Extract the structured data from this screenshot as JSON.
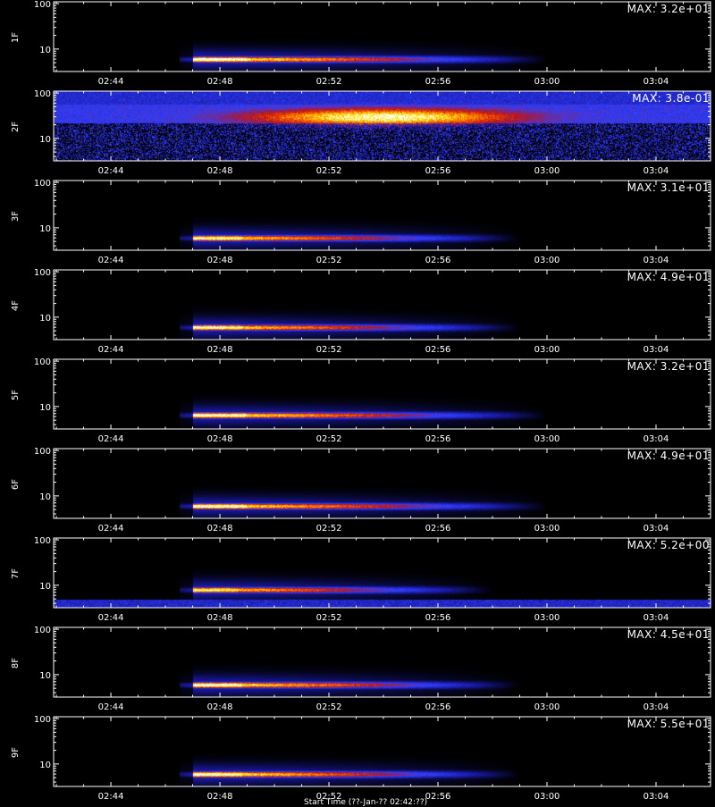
{
  "chart_data": {
    "type": "heatmap",
    "x_ticks": [
      "02:44",
      "02:48",
      "02:52",
      "02:56",
      "03:00",
      "03:04"
    ],
    "y_ticks": [
      "100",
      "10"
    ],
    "y_scale": "log",
    "colormap": [
      "#000000",
      "#1a1aa8",
      "#3040ff",
      "#c01010",
      "#ff6a00",
      "#ffe600",
      "#ffffff"
    ],
    "panels": [
      {
        "label": "1F",
        "max_label": "MAX: 3.2e+01",
        "event_start": "02:47:00",
        "event_end": "03:00:00",
        "intensity_peak": 1.0,
        "freq_center": 6,
        "background": "low"
      },
      {
        "label": "2F",
        "max_label": "MAX: 3.8e-01",
        "event_start": "02:50:00",
        "event_end": "02:58:00",
        "intensity_peak": 0.85,
        "freq_center": 30,
        "background": "noisy"
      },
      {
        "label": "3F",
        "max_label": "MAX: 3.1e+01",
        "event_start": "02:47:00",
        "event_end": "02:59:00",
        "intensity_peak": 0.95,
        "freq_center": 6,
        "background": "low"
      },
      {
        "label": "4F",
        "max_label": "MAX: 4.9e+01",
        "event_start": "02:47:00",
        "event_end": "02:59:00",
        "intensity_peak": 0.95,
        "freq_center": 6,
        "background": "low"
      },
      {
        "label": "5F",
        "max_label": "MAX: 3.2e+01",
        "event_start": "02:47:00",
        "event_end": "03:00:00",
        "intensity_peak": 1.0,
        "freq_center": 6.5,
        "background": "low"
      },
      {
        "label": "6F",
        "max_label": "MAX: 4.9e+01",
        "event_start": "02:47:00",
        "event_end": "03:00:00",
        "intensity_peak": 1.0,
        "freq_center": 6,
        "background": "low"
      },
      {
        "label": "7F",
        "max_label": "MAX: 5.2e+00",
        "event_start": "02:47:00",
        "event_end": "02:58:00",
        "intensity_peak": 0.9,
        "freq_center": 8,
        "background": "bottom-band"
      },
      {
        "label": "8F",
        "max_label": "MAX: 4.5e+01",
        "event_start": "02:47:00",
        "event_end": "02:59:00",
        "intensity_peak": 1.0,
        "freq_center": 6,
        "background": "low"
      },
      {
        "label": "9F",
        "max_label": "MAX: 5.5e+01",
        "event_start": "02:47:00",
        "event_end": "02:59:00",
        "intensity_peak": 1.0,
        "freq_center": 6,
        "background": "low"
      }
    ],
    "footer": "Start Time (??-Jan-?? 02:42:??)"
  }
}
